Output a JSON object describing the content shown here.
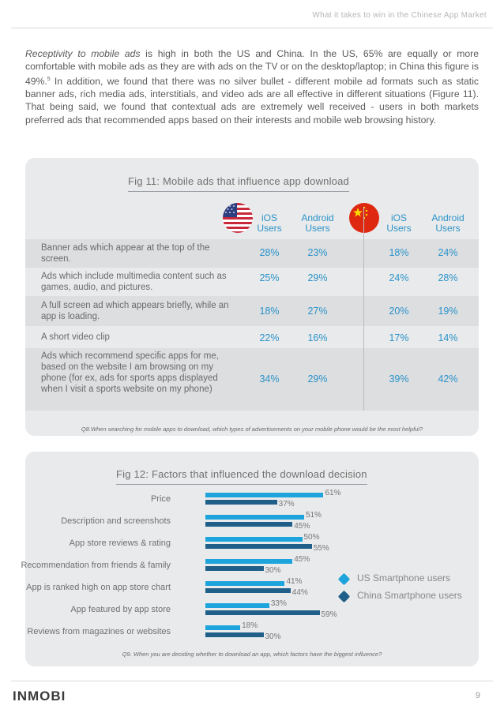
{
  "header": {
    "title": "What it takes to win in the Chinese App Market"
  },
  "intro": {
    "lead_italic": "Receptivity to mobile ads",
    "text": " is high in both the US and China.  In the US, 65% are equally or more comfortable with mobile ads as they are with ads on the TV or on the desktop/laptop; in China this figure is 49%.",
    "footnote": "5",
    "text2": " In addition, we found that there was no silver bullet - different mobile ad formats such as static banner ads, rich media ads, interstitials, and video ads are all effective in different situations (Figure 11). That being said, we found that contextual ads are extremely well received - users in both markets preferred ads that recommended apps based on their interests and mobile web browsing history."
  },
  "fig11": {
    "title": "Fig 11: Mobile ads that influence app download",
    "flags": [
      "us-flag",
      "china-flag"
    ],
    "col_headers": [
      {
        "l1": "iOS",
        "l2": "Users"
      },
      {
        "l1": "Android",
        "l2": "Users"
      },
      {
        "l1": "iOS",
        "l2": "Users"
      },
      {
        "l1": "Android",
        "l2": "Users"
      }
    ],
    "rows": [
      {
        "label": "Banner ads which appear at the top of the screen.",
        "values": [
          "28%",
          "23%",
          "18%",
          "24%"
        ]
      },
      {
        "label": "Ads which include multimedia content such as games, audio, and pictures.",
        "values": [
          "25%",
          "29%",
          "24%",
          "28%"
        ]
      },
      {
        "label": "A full screen ad which appears briefly, while an app is loading.",
        "values": [
          "18%",
          "27%",
          "20%",
          "19%"
        ]
      },
      {
        "label": "A short video clip",
        "values": [
          "22%",
          "16%",
          "17%",
          "14%"
        ]
      },
      {
        "label": "Ads which recommend specific apps for me, based on the website I am browsing on my phone (for ex, ads for sports apps displayed when I visit a sports website on my phone)",
        "values": [
          "34%",
          "29%",
          "39%",
          "42%"
        ]
      }
    ],
    "question": "Q8.When searching for mobile apps to download, which types of advertisements on your mobile phone would be the most helpful?"
  },
  "chart_data": {
    "type": "bar",
    "orientation": "horizontal",
    "title": "Fig 12: Factors that influenced the download decision",
    "categories": [
      "Price",
      "Description and screenshots",
      "App store reviews & rating",
      "Recommendation from friends & family",
      "App is ranked high on app store chart",
      "App featured by app store",
      "Reviews from magazines or websites"
    ],
    "series": [
      {
        "name": "US Smartphone users",
        "color": "#1ea4dc",
        "values": [
          61,
          51,
          50,
          45,
          41,
          33,
          18
        ]
      },
      {
        "name": "China Smartphone users",
        "color": "#1f5f8a",
        "values": [
          37,
          45,
          55,
          30,
          44,
          59,
          30
        ]
      }
    ],
    "value_suffix": "%",
    "xlim": [
      0,
      100
    ],
    "legend": "right",
    "question": "Q9. When you are deciding whether to download an app, which factors have the biggest influence?"
  },
  "footer": {
    "logo": "INMOBI",
    "page": "9"
  }
}
